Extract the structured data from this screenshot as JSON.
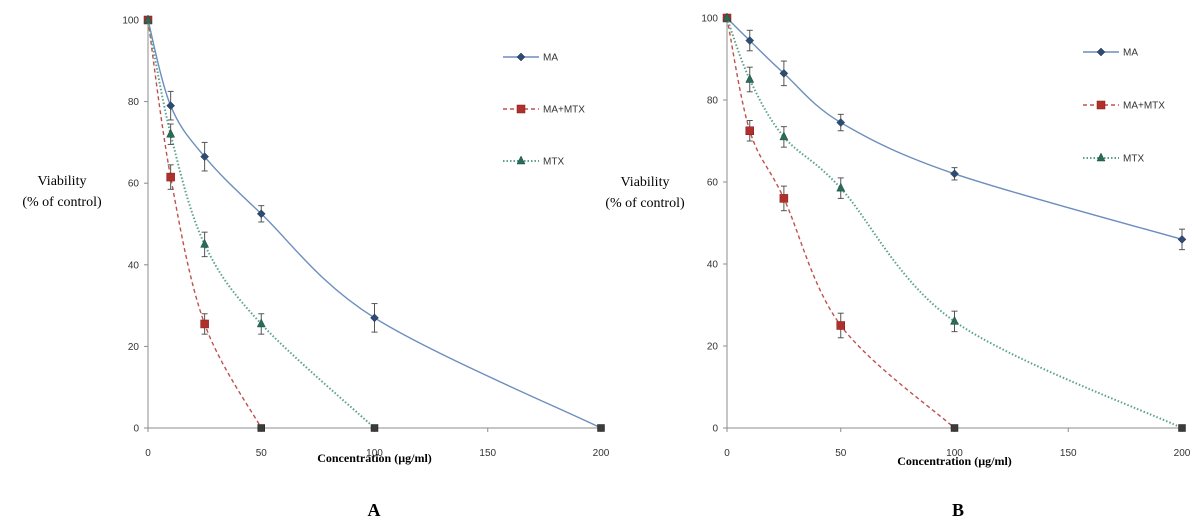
{
  "chart_data": [
    {
      "type": "line",
      "panel_label": "A",
      "xlabel": "Concentration (µg/ml)",
      "ylabel_line1": "Viability",
      "ylabel_line2": "(% of control)",
      "xlim": [
        0,
        200
      ],
      "ylim": [
        0,
        100
      ],
      "x_ticks": [
        0,
        50,
        100,
        150,
        200
      ],
      "y_ticks": [
        0,
        20,
        40,
        60,
        80,
        100
      ],
      "legend_position": "top-right",
      "series": [
        {
          "name": "MA",
          "color": "#6c8ebf",
          "marker": "diamond",
          "marker_color": "#2e4c72",
          "dash": "solid",
          "x": [
            0,
            10,
            25,
            50,
            100,
            200
          ],
          "y": [
            100,
            79,
            66.5,
            52.5,
            27,
            0
          ],
          "err": [
            0,
            3.5,
            3.5,
            2,
            3.5,
            0
          ]
        },
        {
          "name": "MA+MTX",
          "color": "#c0504d",
          "marker": "square",
          "marker_color": "#b2302c",
          "dash": "dashed",
          "x": [
            0,
            10,
            25,
            50
          ],
          "y": [
            100,
            61.5,
            25.5,
            0
          ],
          "err": [
            0,
            3,
            2.5,
            0
          ]
        },
        {
          "name": "MTX",
          "color": "#5aa28e",
          "marker": "triangle",
          "marker_color": "#2a6b5a",
          "dash": "dotted",
          "x": [
            0,
            10,
            25,
            50,
            100
          ],
          "y": [
            100,
            72,
            45,
            25.5,
            0
          ],
          "err": [
            0,
            2.5,
            3,
            2.5,
            0
          ]
        }
      ]
    },
    {
      "type": "line",
      "panel_label": "B",
      "xlabel": "Concentration (µg/ml)",
      "ylabel_line1": "Viability",
      "ylabel_line2": "(% of control)",
      "xlim": [
        0,
        200
      ],
      "ylim": [
        0,
        100
      ],
      "x_ticks": [
        0,
        50,
        100,
        150,
        200
      ],
      "y_ticks": [
        0,
        20,
        40,
        60,
        80,
        100
      ],
      "legend_position": "top-right",
      "series": [
        {
          "name": "MA",
          "color": "#6c8ebf",
          "marker": "diamond",
          "marker_color": "#2e4c72",
          "dash": "solid",
          "x": [
            0,
            10,
            25,
            50,
            100,
            200
          ],
          "y": [
            100,
            94.5,
            86.5,
            74.5,
            62,
            46
          ],
          "err": [
            0,
            2.5,
            3,
            2,
            1.5,
            2.5
          ]
        },
        {
          "name": "MA+MTX",
          "color": "#c0504d",
          "marker": "square",
          "marker_color": "#b2302c",
          "dash": "dashed",
          "x": [
            0,
            10,
            25,
            50,
            100
          ],
          "y": [
            100,
            72.5,
            56,
            25,
            0
          ],
          "err": [
            0,
            2.5,
            3,
            3,
            0
          ]
        },
        {
          "name": "MTX",
          "color": "#5aa28e",
          "marker": "triangle",
          "marker_color": "#2a6b5a",
          "dash": "dotted",
          "x": [
            0,
            10,
            25,
            50,
            100,
            200
          ],
          "y": [
            100,
            85,
            71,
            58.5,
            26,
            0
          ],
          "err": [
            0,
            3,
            2.5,
            2.5,
            2.5,
            0
          ]
        }
      ]
    }
  ]
}
